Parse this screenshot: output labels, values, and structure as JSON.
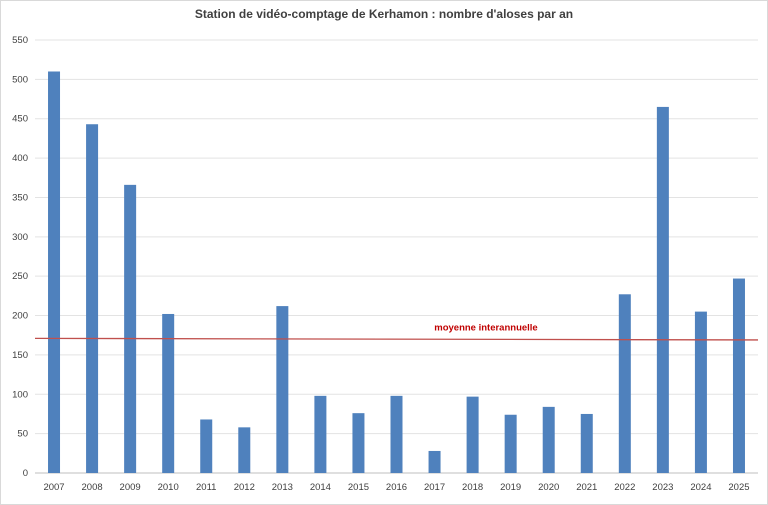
{
  "chart_data": {
    "type": "bar",
    "title": "Station de vidéo-comptage de Kerhamon : nombre d'aloses par an",
    "xlabel": "",
    "ylabel": "",
    "categories": [
      "2007",
      "2008",
      "2009",
      "2010",
      "2011",
      "2012",
      "2013",
      "2014",
      "2015",
      "2016",
      "2017",
      "2018",
      "2019",
      "2020",
      "2021",
      "2022",
      "2023",
      "2024",
      "2025"
    ],
    "values": [
      510,
      443,
      366,
      202,
      68,
      58,
      212,
      98,
      76,
      98,
      28,
      97,
      74,
      84,
      75,
      227,
      465,
      205,
      247
    ],
    "ylim": [
      0,
      550
    ],
    "yticks": [
      "0",
      "50",
      "100",
      "150",
      "200",
      "250",
      "300",
      "350",
      "400",
      "450",
      "500",
      "550"
    ],
    "grid": true,
    "legend": "none",
    "bar_color": "#4f81bd",
    "reference_line": {
      "label": "moyenne interannuelle",
      "value_start": 171,
      "value_end": 169,
      "color": "#c0504d",
      "label_color": "#c00000"
    }
  }
}
